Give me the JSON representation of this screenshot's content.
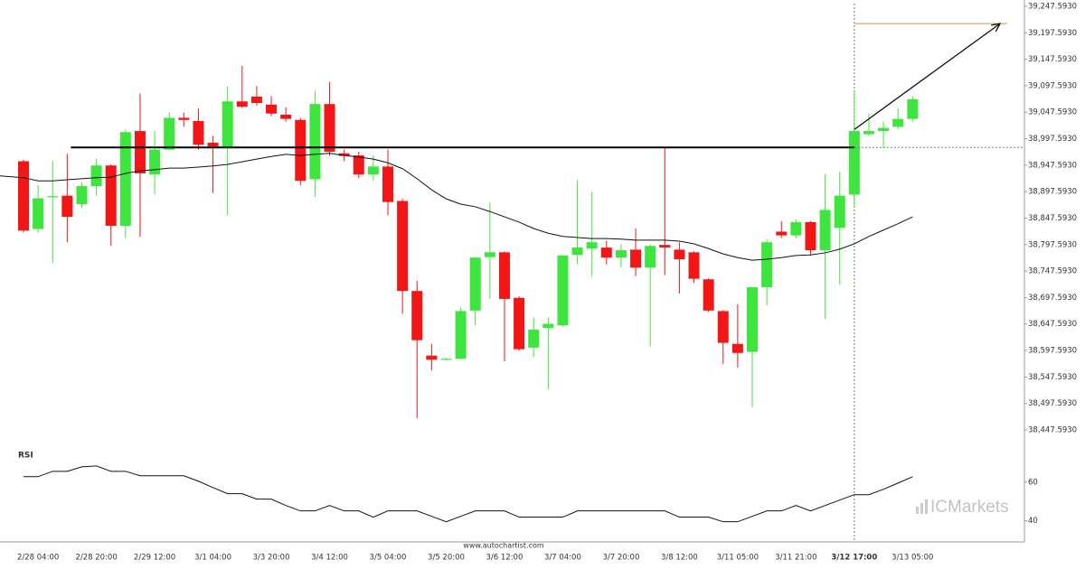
{
  "chart_data": {
    "type": "candlestick",
    "categories": [
      null,
      "2/28 04:00",
      null,
      null,
      null,
      "2/28 20:00",
      null,
      null,
      null,
      "2/29 12:00",
      null,
      null,
      null,
      "3/1 04:00",
      null,
      null,
      null,
      "3/3 20:00",
      null,
      null,
      null,
      "3/4 12:00",
      null,
      null,
      null,
      "3/5 04:00",
      null,
      null,
      null,
      "3/5 20:00",
      null,
      null,
      null,
      "3/6 12:00",
      null,
      null,
      null,
      "3/7 04:00",
      null,
      null,
      null,
      "3/7 20:00",
      null,
      null,
      null,
      "3/8 12:00",
      null,
      null,
      null,
      "3/11 05:00",
      null,
      null,
      null,
      "3/11 21:00",
      null,
      null,
      null,
      "3/12 17:00",
      null,
      null,
      null,
      "3/13 05:00"
    ],
    "highlight_category": 57,
    "open": [
      38955,
      38827,
      38887,
      38890,
      38874,
      38908,
      38947,
      38833,
      39012,
      38930,
      38977,
      39037,
      39031,
      38990,
      38980,
      39068,
      39077,
      39062,
      39043,
      39033,
      38921,
      39063,
      38970,
      38966,
      38930,
      38945,
      38880,
      38710,
      38588,
      38580,
      38582,
      38673,
      38774,
      38783,
      38697,
      38603,
      38640,
      38645,
      38778,
      38790,
      38792,
      38773,
      38788,
      38754,
      38797,
      38788,
      38783,
      38732,
      38672,
      38610,
      38595,
      38717,
      38822,
      38815,
      38840,
      38787,
      38829,
      38892,
      39006,
      39012,
      39020,
      39035
    ],
    "high": [
      38958,
      38910,
      38955,
      38969,
      38915,
      38960,
      38949,
      39015,
      39083,
      39012,
      39047,
      39047,
      39055,
      39003,
      39097,
      39135,
      39097,
      39078,
      39057,
      39037,
      39088,
      39105,
      38977,
      38973,
      38966,
      38977,
      38884,
      38729,
      38610,
      38583,
      38679,
      38773,
      38877,
      38785,
      38700,
      38660,
      38660,
      38778,
      38920,
      38897,
      38805,
      38798,
      38828,
      38798,
      38981,
      38802,
      38785,
      38734,
      38674,
      38685,
      38718,
      38807,
      38842,
      38845,
      38842,
      38930,
      38935,
      39088,
      39045,
      39030,
      39055,
      39078
    ],
    "low": [
      38820,
      38820,
      38763,
      38802,
      38867,
      38890,
      38795,
      38810,
      38812,
      38893,
      38976,
      39020,
      38977,
      38895,
      38853,
      39055,
      39060,
      39040,
      39030,
      38910,
      38888,
      38965,
      38955,
      38923,
      38918,
      38853,
      38667,
      38470,
      38560,
      38579,
      38580,
      38645,
      38695,
      38577,
      38597,
      38585,
      38525,
      38643,
      38760,
      38738,
      38760,
      38755,
      38738,
      38605,
      38740,
      38705,
      38725,
      38670,
      38572,
      38565,
      38490,
      38683,
      38810,
      38810,
      38777,
      38657,
      38722,
      38870,
      39003,
      38980,
      39016,
      39030
    ],
    "close": [
      38824,
      38885,
      38889,
      38850,
      38908,
      38947,
      38833,
      39010,
      38932,
      38977,
      39037,
      39033,
      38986,
      38983,
      39068,
      39058,
      39065,
      39045,
      39035,
      38918,
      39063,
      38973,
      38965,
      38930,
      38945,
      38878,
      38710,
      38617,
      38580,
      38582,
      38672,
      38773,
      38783,
      38695,
      38600,
      38637,
      38648,
      38777,
      38792,
      38802,
      38773,
      38787,
      38754,
      38795,
      38792,
      38770,
      38733,
      38673,
      38612,
      38593,
      38717,
      38802,
      38815,
      38840,
      38787,
      38863,
      38890,
      39012,
      39012,
      39018,
      39035,
      39072
    ],
    "moving_average": [
      38924,
      38918,
      38918,
      38920,
      38922,
      38924,
      38925,
      38932,
      38937,
      38939,
      38942,
      38942,
      38944,
      38946,
      38949,
      38954,
      38959,
      38964,
      38968,
      38966,
      38968,
      38970,
      38966,
      38963,
      38959,
      38952,
      38941,
      38922,
      38901,
      38884,
      38874,
      38869,
      38860,
      38850,
      38840,
      38828,
      38819,
      38813,
      38811,
      38809,
      38809,
      38808,
      38806,
      38806,
      38806,
      38804,
      38799,
      38790,
      38780,
      38773,
      38768,
      38770,
      38773,
      38777,
      38778,
      38782,
      38789,
      38799,
      38813,
      38825,
      38837,
      38850
    ],
    "up_color": "#3ee53e",
    "down_color": "#f21616",
    "ylim": [
      38423.7,
      39259.5
    ],
    "yticks": [
      {
        "value": 39247.593,
        "label": "39,247.5930"
      },
      {
        "value": 39197.593,
        "label": "39,197.5930"
      },
      {
        "value": 39147.593,
        "label": "39,147.5930"
      },
      {
        "value": 39097.593,
        "label": "39,097.5930"
      },
      {
        "value": 39047.593,
        "label": "39,047.5930"
      },
      {
        "value": 38997.593,
        "label": "38,997.5930"
      },
      {
        "value": 38947.593,
        "label": "38,947.5930"
      },
      {
        "value": 38897.593,
        "label": "38,897.5930"
      },
      {
        "value": 38847.593,
        "label": "38,847.5930"
      },
      {
        "value": 38797.593,
        "label": "38,797.5930"
      },
      {
        "value": 38747.593,
        "label": "38,747.5930"
      },
      {
        "value": 38697.593,
        "label": "38,697.5930"
      },
      {
        "value": 38647.593,
        "label": "38,647.5930"
      },
      {
        "value": 38597.593,
        "label": "38,597.5930"
      },
      {
        "value": 38547.593,
        "label": "38,547.5930"
      },
      {
        "value": 38497.593,
        "label": "38,497.5930"
      },
      {
        "value": 38447.593,
        "label": "38,447.5930"
      }
    ],
    "support": {
      "value": 38981,
      "from": 3,
      "to": 57
    },
    "target": {
      "value": 39215,
      "from": 57,
      "to": 68
    },
    "arrow": {
      "from": [
        57,
        39015
      ],
      "to": [
        67,
        39215
      ]
    },
    "rsi": {
      "label": "RSI",
      "values": [
        62.8,
        62.8,
        65.6,
        65.6,
        67.9,
        68.4,
        65.6,
        65.6,
        63.3,
        63.3,
        63.3,
        63.3,
        60.5,
        57.2,
        54,
        54,
        51.2,
        51.2,
        47.9,
        45.1,
        45.1,
        47.9,
        45.1,
        45.1,
        41.9,
        45.1,
        45.1,
        45.1,
        42.3,
        39.5,
        42.3,
        45.1,
        45.1,
        45.1,
        41.9,
        41.9,
        41.9,
        41.9,
        45.1,
        45.1,
        45.1,
        45.1,
        45.1,
        45.1,
        45.1,
        41.9,
        41.9,
        41.9,
        39.5,
        39.5,
        42.3,
        45.1,
        45.1,
        47.9,
        45.1,
        47.9,
        50.7,
        53.5,
        53.5,
        56.3,
        59.5,
        62.8
      ],
      "ylim": [
        30,
        80
      ],
      "yticks": [
        60,
        40
      ]
    },
    "source": "www.autochartist.com",
    "watermark": "ICMarkets"
  }
}
